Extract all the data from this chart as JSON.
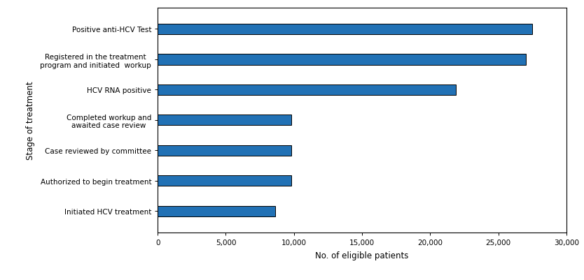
{
  "categories": [
    "Initiated HCV treatment",
    "Authorized to begin treatment",
    "Case reviewed by committee",
    "Completed workup and\nawaited case review",
    "HCV RNA positive",
    "Registered in the treatment\nprogram and initiated  workup",
    "Positive anti-HCV Test"
  ],
  "values": [
    8600,
    9800,
    9800,
    9800,
    21900,
    27000,
    27500
  ],
  "bar_color": "#2171B5",
  "bar_edgecolor": "#000000",
  "xlabel": "No. of eligible patients",
  "ylabel": "Stage of treatment",
  "xlim": [
    0,
    30000
  ],
  "xticks": [
    0,
    5000,
    10000,
    15000,
    20000,
    25000,
    30000
  ],
  "xticklabels": [
    "0",
    "5,000",
    "10,000",
    "15,000",
    "20,000",
    "25,000",
    "30,000"
  ],
  "background_color": "#ffffff",
  "bar_height": 0.35,
  "label_fontsize": 7.5,
  "tick_fontsize": 7.5,
  "axis_label_fontsize": 8.5
}
